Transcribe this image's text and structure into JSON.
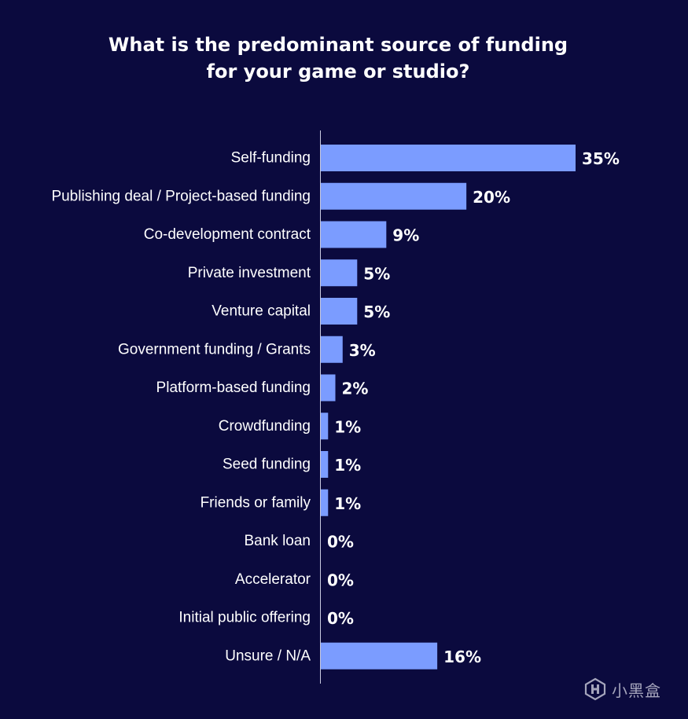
{
  "chart_data": {
    "type": "bar",
    "orientation": "horizontal",
    "title": "What is the predominant source of funding\nfor your game or studio?",
    "categories": [
      "Self-funding",
      "Publishing deal / Project-based funding",
      "Co-development contract",
      "Private investment",
      "Venture capital",
      "Government funding / Grants",
      "Platform-based funding",
      "Crowdfunding",
      "Seed funding",
      "Friends or family",
      "Bank loan",
      "Accelerator",
      "Initial public offering",
      "Unsure / N/A"
    ],
    "values": [
      35,
      20,
      9,
      5,
      5,
      3,
      2,
      1,
      1,
      1,
      0,
      0,
      0,
      16
    ],
    "value_labels": [
      "35%",
      "20%",
      "9%",
      "5%",
      "5%",
      "3%",
      "2%",
      "1%",
      "1%",
      "1%",
      "0%",
      "0%",
      "0%",
      "16%"
    ],
    "unit": "%",
    "xlim": [
      0,
      35
    ],
    "grid": false,
    "legend": "none",
    "bar_color": "#7b9cff",
    "background_color": "#0b0a3e",
    "text_color": "#ffffff"
  },
  "watermark": {
    "icon": "heybox-logo-icon",
    "text": "小黑盒"
  }
}
